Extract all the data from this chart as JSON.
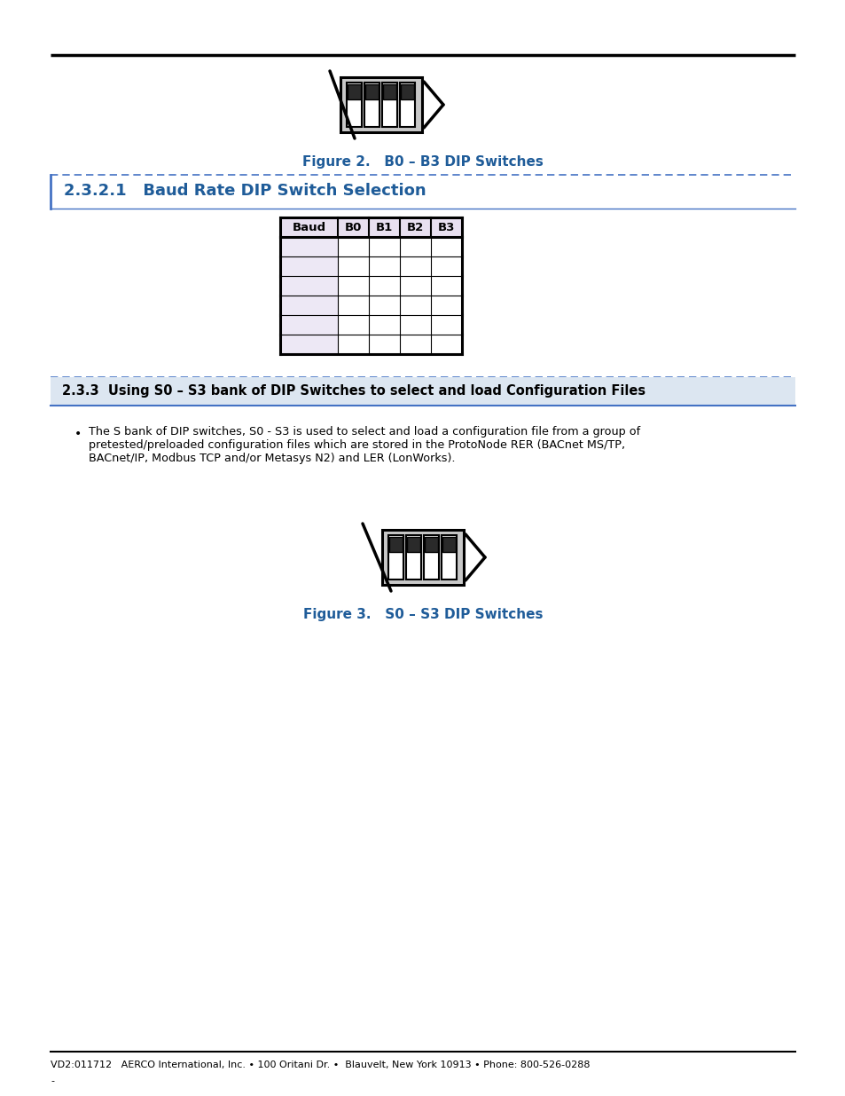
{
  "page_bg": "#ffffff",
  "top_line_color": "#000000",
  "figure2_caption": "Figure 2.   B0 – B3 DIP Switches",
  "figure3_caption": "Figure 3.   S0 – S3 DIP Switches",
  "section_231_title": "2.3.2.1   Baud Rate DIP Switch Selection",
  "section_233_title": "2.3.3  Using S0 – S3 bank of DIP Switches to select and load Configuration Files",
  "section_color": "#1f5c99",
  "section_border_color": "#4472c4",
  "table_header": [
    "Baud",
    "B0",
    "B1",
    "B2",
    "B3"
  ],
  "table_header_bg": "#e8e0f0",
  "table_row_bg_baud": "#ede8f5",
  "table_row_bg_other": "#ffffff",
  "caption_color": "#1f5c99",
  "body_line1": "The S bank of DIP switches, S0 - S3 is used to select and load a configuration file from a group of",
  "body_line2": "pretested/preloaded configuration files which are stored in the ProtoNode RER (BACnet MS/TP,",
  "body_line3": "BACnet/IP, Modbus TCP and/or Metasys N2) and LER (LonWorks).",
  "footer_text": "VD2:011712   AERCO International, Inc. • 100 Oritani Dr. •  Blauvelt, New York 10913 • Phone: 800-526-0288",
  "footer_sub": "-"
}
